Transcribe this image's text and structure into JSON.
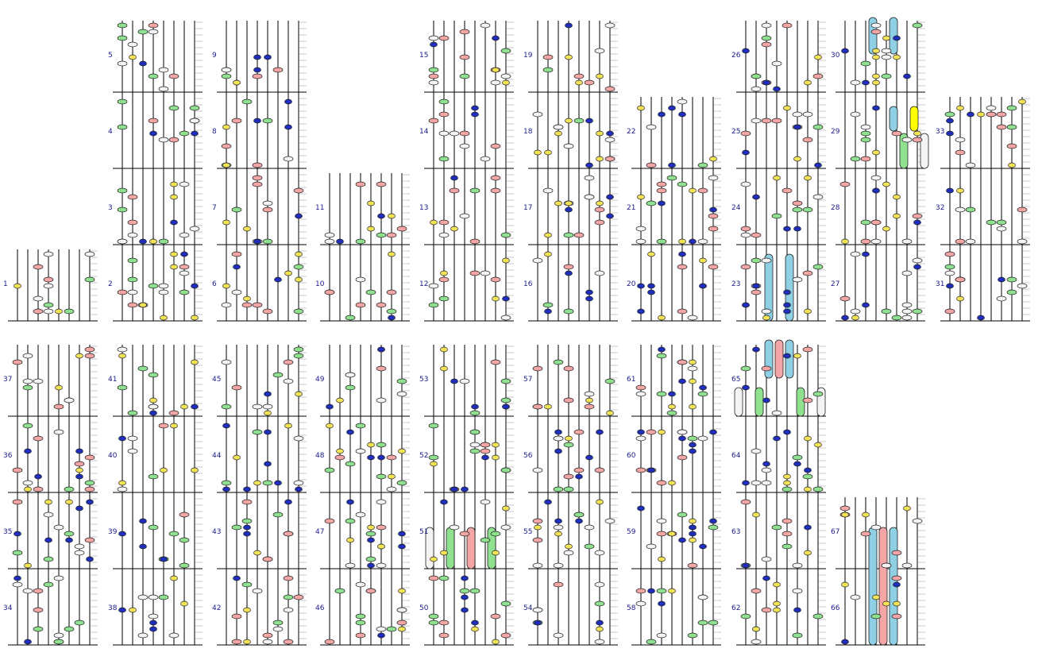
{
  "diagram": {
    "row_labels": [
      "1",
      "2",
      "3",
      "4",
      "5",
      "6",
      "7",
      "8",
      "9",
      "10",
      "11",
      "12",
      "13",
      "14",
      "15",
      "16",
      "17",
      "18",
      "19",
      "20",
      "21",
      "22",
      "23",
      "24",
      "25",
      "26",
      "27",
      "28",
      "29",
      "30",
      "31",
      "32",
      "33",
      "34",
      "35",
      "36",
      "37",
      "38",
      "39",
      "40",
      "41",
      "42",
      "43",
      "44",
      "45",
      "46",
      "47",
      "48",
      "49",
      "50",
      "51",
      "52",
      "53",
      "54",
      "55",
      "56",
      "57",
      "58",
      "59",
      "60",
      "61",
      "62",
      "63",
      "64",
      "65",
      "66",
      "67"
    ],
    "colors": {
      "grid_line": "#000000",
      "minor_line": "#c8c8c8",
      "label": "#1a1a8c",
      "white": "#f4f4f4",
      "yellow": "#f2e25a",
      "green": "#8fe08f",
      "pink": "#f4a6a6",
      "blue": "#1f2fb8",
      "lightblue": "#8fd0e4",
      "bright_yellow": "#ffff00"
    }
  }
}
